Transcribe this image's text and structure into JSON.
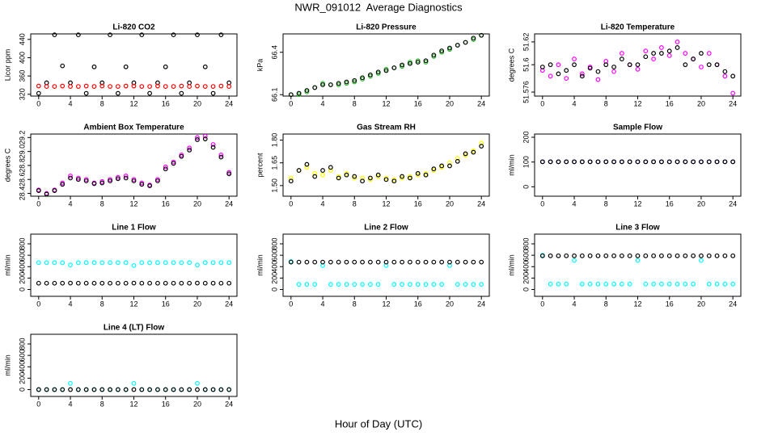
{
  "title": "NWR_091012  Average Diagnostics",
  "x_label": "Hour of Day (UTC)",
  "chart_data": [
    {
      "type": "scatter",
      "title": "Li-820 CO2",
      "y_label": "Licor ppm",
      "x": [
        0,
        1,
        2,
        3,
        4,
        5,
        6,
        7,
        8,
        9,
        10,
        11,
        12,
        13,
        14,
        15,
        16,
        17,
        18,
        19,
        20,
        21,
        22,
        23,
        24
      ],
      "xlim": [
        -1,
        25
      ],
      "xticks": [
        0,
        4,
        8,
        12,
        16,
        20,
        24
      ],
      "ylim": [
        316,
        452
      ],
      "yticks": [
        320,
        360,
        400,
        440
      ],
      "series": [
        {
          "color": "#000000",
          "values": [
            322,
            345,
            450,
            382,
            345,
            450,
            322,
            380,
            345,
            450,
            322,
            380,
            345,
            450,
            322,
            345,
            380,
            450,
            322,
            345,
            450,
            380,
            322,
            450,
            345
          ]
        },
        {
          "color": "#ff0000",
          "values": [
            338,
            337,
            337,
            338,
            337,
            337,
            338,
            337,
            338,
            337,
            337,
            338,
            338,
            337,
            337,
            338,
            337,
            337,
            338,
            337,
            338,
            337,
            337,
            338,
            337
          ]
        }
      ]
    },
    {
      "type": "scatter",
      "title": "Li-820 Pressure",
      "y_label": "kPa",
      "x": [
        0,
        1,
        2,
        3,
        4,
        5,
        6,
        7,
        8,
        9,
        10,
        11,
        12,
        13,
        14,
        15,
        16,
        17,
        18,
        19,
        20,
        21,
        22,
        23,
        24
      ],
      "xlim": [
        -1,
        25
      ],
      "xticks": [
        0,
        4,
        8,
        12,
        16,
        20,
        24
      ],
      "ylim": [
        66.09,
        66.53
      ],
      "yticks": [
        66.1,
        66.4
      ],
      "series": [
        {
          "color": "#22bb22",
          "values": [
            66.1,
            66.1,
            66.12,
            66.15,
            66.18,
            66.17,
            66.17,
            66.18,
            66.19,
            66.21,
            66.23,
            66.25,
            66.28,
            66.29,
            66.3,
            66.33,
            66.34,
            66.33,
            66.37,
            66.4,
            66.42,
            66.45,
            66.47,
            66.49,
            66.52
          ]
        },
        {
          "color": "#000000",
          "values": [
            66.1,
            66.11,
            66.13,
            66.15,
            66.17,
            66.17,
            66.18,
            66.19,
            66.2,
            66.22,
            66.24,
            66.26,
            66.27,
            66.29,
            66.31,
            66.32,
            66.33,
            66.34,
            66.38,
            66.41,
            66.43,
            66.45,
            66.47,
            66.5,
            66.52
          ]
        }
      ]
    },
    {
      "type": "scatter",
      "title": "Li-820 Temperature",
      "y_label": "degrees C",
      "x": [
        0,
        1,
        2,
        3,
        4,
        5,
        6,
        7,
        8,
        9,
        10,
        11,
        12,
        13,
        14,
        15,
        16,
        17,
        18,
        19,
        20,
        21,
        22,
        23,
        24
      ],
      "xlim": [
        -1,
        25
      ],
      "xticks": [
        0,
        4,
        8,
        12,
        16,
        20,
        24
      ],
      "ylim": [
        51.5725,
        51.627
      ],
      "yticks": [
        51.576,
        51.6,
        51.62
      ],
      "series": [
        {
          "color": "#ff00ff",
          "values": [
            51.595,
            51.59,
            51.6,
            51.588,
            51.605,
            51.592,
            51.598,
            51.587,
            51.603,
            51.594,
            51.61,
            51.6,
            51.596,
            51.612,
            51.605,
            51.615,
            51.608,
            51.62,
            51.61,
            51.605,
            51.598,
            51.61,
            51.6,
            51.59,
            51.575
          ]
        },
        {
          "color": "#000000",
          "values": [
            51.598,
            51.6,
            51.592,
            51.595,
            51.6,
            51.59,
            51.597,
            51.594,
            51.6,
            51.598,
            51.605,
            51.6,
            51.6,
            51.607,
            51.61,
            51.61,
            51.612,
            51.615,
            51.6,
            51.605,
            51.61,
            51.6,
            51.6,
            51.594,
            51.59
          ]
        }
      ]
    },
    {
      "type": "scatter",
      "title": "Ambient Box Temperature",
      "y_label": "degrees C",
      "x": [
        0,
        1,
        2,
        3,
        4,
        5,
        6,
        7,
        8,
        9,
        10,
        11,
        12,
        13,
        14,
        15,
        16,
        17,
        18,
        19,
        20,
        21,
        22,
        23,
        24
      ],
      "xlim": [
        -1,
        25
      ],
      "xticks": [
        0,
        4,
        8,
        12,
        16,
        20,
        24
      ],
      "ylim": [
        28.36,
        29.25
      ],
      "yticks": [
        28.4,
        28.6,
        28.8,
        {
          "value": 29,
          "label": "29.0"
        },
        29.2
      ],
      "series": [
        {
          "color": "#ff00ff",
          "values": [
            28.45,
            28.4,
            28.45,
            28.55,
            28.65,
            28.62,
            28.6,
            28.55,
            28.57,
            28.6,
            28.63,
            28.65,
            28.6,
            28.55,
            28.52,
            28.6,
            28.78,
            28.85,
            28.95,
            29.05,
            29.2,
            29.22,
            29.1,
            28.95,
            28.7
          ]
        },
        {
          "color": "#000000",
          "values": [
            28.44,
            28.39,
            28.44,
            28.53,
            28.62,
            28.6,
            28.58,
            28.54,
            28.55,
            28.58,
            28.61,
            28.62,
            28.58,
            28.53,
            28.51,
            28.58,
            28.75,
            28.83,
            28.93,
            29.02,
            29.17,
            29.18,
            29.06,
            28.92,
            28.68
          ]
        }
      ]
    },
    {
      "type": "scatter",
      "title": "Gas Stream RH",
      "y_label": "percent",
      "x": [
        0,
        1,
        2,
        3,
        4,
        5,
        6,
        7,
        8,
        9,
        10,
        11,
        12,
        13,
        14,
        15,
        16,
        17,
        18,
        19,
        20,
        21,
        22,
        23,
        24
      ],
      "xlim": [
        -1,
        25
      ],
      "xticks": [
        0,
        4,
        8,
        12,
        16,
        20,
        24
      ],
      "ylim": [
        1.43,
        1.84
      ],
      "yticks": [
        {
          "value": 1.5,
          "label": "1.50"
        },
        {
          "value": 1.65,
          "label": "1.65"
        },
        {
          "value": 1.8,
          "label": "1.80"
        }
      ],
      "series": [
        {
          "color": "#ffff00",
          "values": [
            1.55,
            1.6,
            1.62,
            1.58,
            1.57,
            1.6,
            1.56,
            1.58,
            1.55,
            1.55,
            1.54,
            1.56,
            1.55,
            1.54,
            1.55,
            1.56,
            1.57,
            1.58,
            1.6,
            1.62,
            1.65,
            1.68,
            1.7,
            1.73,
            1.78
          ]
        },
        {
          "color": "#000000",
          "values": [
            1.53,
            1.6,
            1.64,
            1.56,
            1.6,
            1.62,
            1.55,
            1.57,
            1.56,
            1.53,
            1.55,
            1.57,
            1.54,
            1.53,
            1.56,
            1.55,
            1.58,
            1.57,
            1.61,
            1.63,
            1.63,
            1.66,
            1.71,
            1.72,
            1.76
          ]
        }
      ]
    },
    {
      "type": "scatter",
      "title": "Sample Flow",
      "y_label": "ml/min",
      "x": [
        0,
        1,
        2,
        3,
        4,
        5,
        6,
        7,
        8,
        9,
        10,
        11,
        12,
        13,
        14,
        15,
        16,
        17,
        18,
        19,
        20,
        21,
        22,
        23,
        24
      ],
      "xlim": [
        -1,
        25
      ],
      "xticks": [
        0,
        4,
        8,
        12,
        16,
        20,
        24
      ],
      "ylim": [
        -38,
        213
      ],
      "yticks": [
        0,
        100,
        200
      ],
      "series": [
        {
          "color": "#0000cc",
          "values": [
            101,
            101,
            101,
            101,
            101,
            101,
            101,
            101,
            101,
            101,
            101,
            101,
            101,
            101,
            101,
            101,
            101,
            101,
            101,
            101,
            101,
            101,
            101,
            101,
            101
          ]
        },
        {
          "color": "#000000",
          "values": [
            101,
            101,
            101,
            101,
            101,
            101,
            101,
            101,
            101,
            101,
            101,
            101,
            101,
            101,
            101,
            101,
            101,
            101,
            101,
            101,
            101,
            101,
            101,
            101,
            101
          ]
        }
      ]
    },
    {
      "type": "scatter",
      "title": "Line 1 Flow",
      "y_label": "ml/min",
      "x": [
        0,
        1,
        2,
        3,
        4,
        5,
        6,
        7,
        8,
        9,
        10,
        11,
        12,
        13,
        14,
        15,
        16,
        17,
        18,
        19,
        20,
        21,
        22,
        23,
        24
      ],
      "xlim": [
        -1,
        25
      ],
      "xticks": [
        0,
        4,
        8,
        12,
        16,
        20,
        24
      ],
      "ylim": [
        -120,
        970
      ],
      "yticks": [
        0,
        200,
        400,
        600,
        800
      ],
      "series": [
        {
          "color": "#00ffff",
          "values": [
            470,
            470,
            470,
            468,
            430,
            468,
            470,
            470,
            468,
            470,
            470,
            470,
            420,
            470,
            468,
            470,
            470,
            470,
            468,
            470,
            430,
            470,
            470,
            470,
            470
          ]
        },
        {
          "color": "#000000",
          "values": [
            110,
            110,
            110,
            110,
            112,
            110,
            110,
            110,
            110,
            110,
            110,
            110,
            112,
            110,
            110,
            110,
            110,
            110,
            110,
            110,
            112,
            110,
            110,
            110,
            110
          ]
        }
      ]
    },
    {
      "type": "scatter",
      "title": "Line 2 Flow",
      "y_label": "ml/min",
      "x": [
        0,
        1,
        2,
        3,
        4,
        5,
        6,
        7,
        8,
        9,
        10,
        11,
        12,
        13,
        14,
        15,
        16,
        17,
        18,
        19,
        20,
        21,
        22,
        23,
        24
      ],
      "xlim": [
        -1,
        25
      ],
      "xticks": [
        0,
        4,
        8,
        12,
        16,
        20,
        24
      ],
      "ylim": [
        -120,
        970
      ],
      "yticks": [
        0,
        200,
        400,
        600,
        800
      ],
      "series": [
        {
          "color": "#00ffff",
          "values": [
            490,
            90,
            90,
            90,
            420,
            90,
            90,
            90,
            90,
            90,
            90,
            90,
            420,
            90,
            90,
            90,
            90,
            90,
            90,
            90,
            420,
            90,
            90,
            90,
            90
          ]
        },
        {
          "color": "#000000",
          "values": [
            480,
            480,
            480,
            480,
            480,
            480,
            480,
            480,
            480,
            480,
            480,
            480,
            480,
            480,
            480,
            480,
            480,
            480,
            480,
            480,
            480,
            480,
            480,
            480,
            480
          ]
        }
      ]
    },
    {
      "type": "scatter",
      "title": "Line 3 Flow",
      "y_label": "ml/min",
      "x": [
        0,
        1,
        2,
        3,
        4,
        5,
        6,
        7,
        8,
        9,
        10,
        11,
        12,
        13,
        14,
        15,
        16,
        17,
        18,
        19,
        20,
        21,
        22,
        23,
        24
      ],
      "xlim": [
        -1,
        25
      ],
      "xticks": [
        0,
        4,
        8,
        12,
        16,
        20,
        24
      ],
      "ylim": [
        -120,
        970
      ],
      "yticks": [
        0,
        200,
        400,
        600,
        800
      ],
      "series": [
        {
          "color": "#00ffff",
          "values": [
            600,
            95,
            95,
            95,
            510,
            95,
            95,
            95,
            95,
            95,
            95,
            95,
            510,
            95,
            95,
            95,
            95,
            95,
            95,
            95,
            510,
            95,
            95,
            95,
            95
          ]
        },
        {
          "color": "#000000",
          "values": [
            590,
            590,
            590,
            590,
            590,
            590,
            590,
            590,
            590,
            590,
            590,
            590,
            590,
            590,
            590,
            590,
            590,
            590,
            590,
            590,
            590,
            590,
            590,
            590,
            590
          ]
        }
      ]
    },
    {
      "type": "scatter",
      "title": "Line 4 (LT) Flow",
      "y_label": "ml/min",
      "x": [
        0,
        1,
        2,
        3,
        4,
        5,
        6,
        7,
        8,
        9,
        10,
        11,
        12,
        13,
        14,
        15,
        16,
        17,
        18,
        19,
        20,
        21,
        22,
        23,
        24
      ],
      "xlim": [
        -1,
        25
      ],
      "xticks": [
        0,
        4,
        8,
        12,
        16,
        20,
        24
      ],
      "ylim": [
        -120,
        970
      ],
      "yticks": [
        0,
        200,
        400,
        600,
        800
      ],
      "series": [
        {
          "color": "#00ffff",
          "values": [
            0,
            0,
            0,
            0,
            110,
            0,
            0,
            0,
            0,
            0,
            0,
            0,
            110,
            0,
            0,
            0,
            0,
            0,
            0,
            0,
            110,
            0,
            0,
            0,
            0
          ]
        },
        {
          "color": "#000000",
          "values": [
            0,
            0,
            0,
            0,
            0,
            0,
            0,
            0,
            0,
            0,
            0,
            0,
            0,
            0,
            0,
            0,
            0,
            0,
            0,
            0,
            0,
            0,
            0,
            0,
            0
          ]
        }
      ]
    }
  ]
}
